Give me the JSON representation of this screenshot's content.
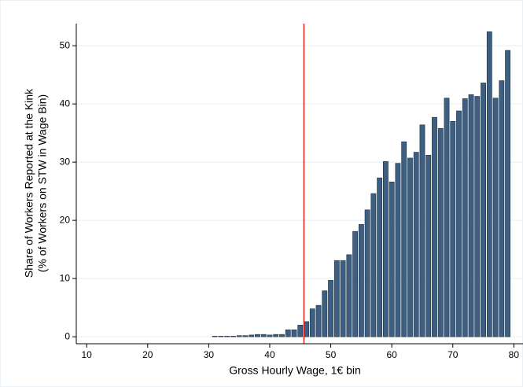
{
  "chart_data": {
    "type": "bar",
    "xlabel": "Gross Hourly Wage, 1€ bin",
    "ylabel": [
      "Share of Workers Reported at the Kink",
      "(% of Workers on STW in Wage Bin)"
    ],
    "x": [
      31,
      32,
      33,
      34,
      35,
      36,
      37,
      38,
      39,
      40,
      41,
      42,
      43,
      44,
      45,
      46,
      47,
      48,
      49,
      50,
      51,
      52,
      53,
      54,
      55,
      56,
      57,
      58,
      59,
      60,
      61,
      62,
      63,
      64,
      65,
      66,
      67,
      68,
      69,
      70,
      71,
      72,
      73,
      74,
      75,
      76,
      77,
      78,
      79
    ],
    "values": [
      0.1,
      0.1,
      0.1,
      0.1,
      0.2,
      0.2,
      0.3,
      0.4,
      0.4,
      0.3,
      0.4,
      0.4,
      1.2,
      1.2,
      2.0,
      2.6,
      4.8,
      5.4,
      7.9,
      9.7,
      13.1,
      13.1,
      14.1,
      18.1,
      19.3,
      21.8,
      24.6,
      27.3,
      30.1,
      26.6,
      29.8,
      33.5,
      30.7,
      31.7,
      36.4,
      31.2,
      37.7,
      35.8,
      41.0,
      37.0,
      38.8,
      40.9,
      41.6,
      41.3,
      43.6,
      52.4,
      41.0,
      44.0,
      49.2
    ],
    "color": "#3d5f82",
    "kink_line": 45.6,
    "kink_color": "#e8201c",
    "xlim": [
      8.3,
      81.5
    ],
    "ylim": [
      -1.2,
      53.8
    ],
    "xticks": [
      10,
      20,
      30,
      40,
      50,
      60,
      70,
      80
    ],
    "yticks": [
      0,
      10,
      20,
      30,
      40,
      50
    ],
    "grid": true
  }
}
